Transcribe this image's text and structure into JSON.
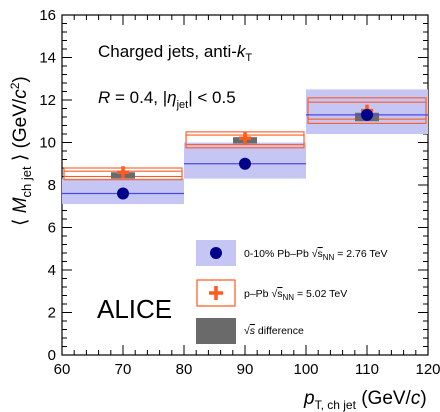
{
  "chart_data": {
    "type": "scatter",
    "title": "",
    "xlabel_main": "p",
    "xlabel_sub": "T, ch jet",
    "xlabel_unit": "(GeV/c)",
    "ylabel_open": "⟨ M",
    "ylabel_sub": "ch jet",
    "ylabel_close": "⟩ (GeV/c²)",
    "xlim": [
      60,
      120
    ],
    "ylim": [
      0,
      16
    ],
    "xticks": [
      60,
      70,
      80,
      90,
      100,
      110,
      120
    ],
    "yticks": [
      0,
      2,
      4,
      6,
      8,
      10,
      12,
      14,
      16
    ],
    "grid": false,
    "legend_position": "lower-right",
    "annotations": {
      "line1": "Charged jets, anti-kT",
      "line2": "R = 0.4, |ηjet| < 0.5",
      "experiment": "ALICE"
    },
    "bins": [
      [
        60,
        80
      ],
      [
        80,
        100
      ],
      [
        100,
        120
      ]
    ],
    "x": [
      70,
      90,
      110
    ],
    "series": [
      {
        "name": "0-10% Pb–Pb √sNN = 2.76 TeV",
        "color": "#00008b",
        "band_color": "#c6c6f5",
        "line_color": "#4a4ae0",
        "values": [
          7.6,
          9.0,
          11.3
        ],
        "sys_low": [
          7.1,
          8.3,
          10.4
        ],
        "sys_high": [
          8.3,
          10.0,
          12.5
        ]
      },
      {
        "name": "p–Pb √sNN = 5.02 TeV",
        "color": "#ff5a1f",
        "values": [
          8.6,
          10.2,
          11.5
        ],
        "sys_low": [
          8.25,
          9.75,
          10.9
        ],
        "sys_high": [
          8.8,
          10.5,
          12.1
        ],
        "sys_inner_low": [
          8.4,
          9.9,
          11.1
        ],
        "sys_inner_high": [
          8.65,
          10.35,
          11.9
        ]
      },
      {
        "name": "√s difference",
        "color": "#6a6a6a",
        "values": [
          8.3,
          9.95,
          11.0
        ],
        "box_low": [
          8.3,
          9.95,
          11.0
        ],
        "box_high": [
          8.6,
          10.25,
          11.4
        ]
      }
    ],
    "legend": {
      "pbpb_label": "0-10% Pb–Pb √sNN = 2.76 TeV",
      "ppb_label": "p–Pb √sNN = 5.02 TeV",
      "diff_label": "√s difference"
    }
  }
}
